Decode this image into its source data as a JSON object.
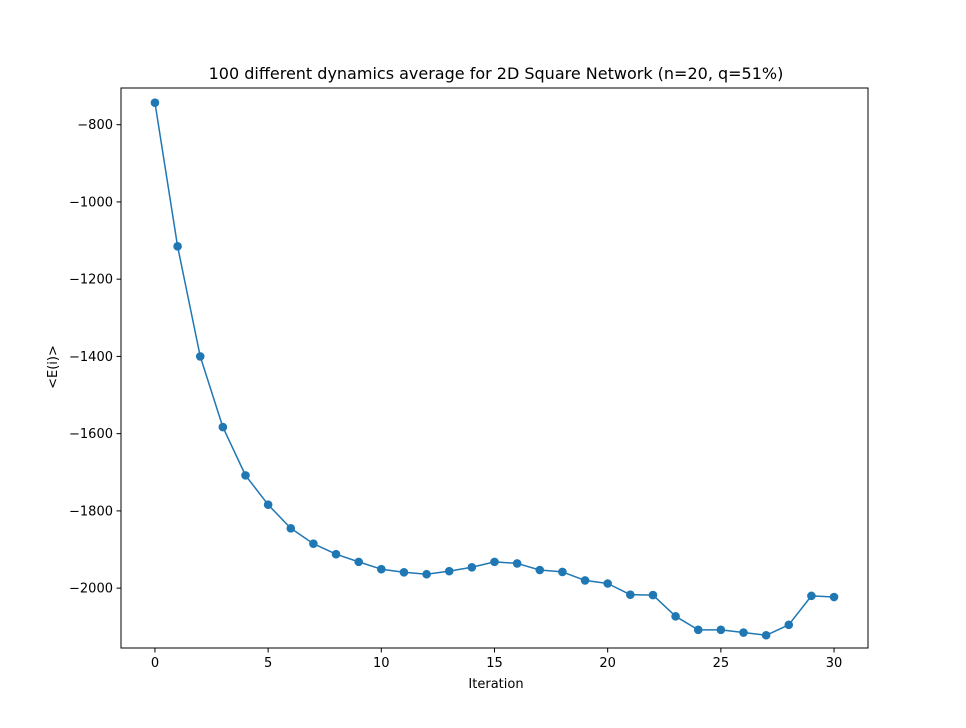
{
  "chart_data": {
    "type": "line",
    "title": "100 different dynamics average for 2D Square Network (n=20, q=51%)",
    "xlabel": "Iteration",
    "ylabel": "<E(i)>",
    "xlim": [
      -1.5,
      31.5
    ],
    "ylim": [
      -2155,
      -705
    ],
    "xticks": [
      0,
      5,
      10,
      15,
      20,
      25,
      30
    ],
    "yticks": [
      -800,
      -1000,
      -1200,
      -1400,
      -1600,
      -1800,
      -2000
    ],
    "xtick_labels": [
      "0",
      "5",
      "10",
      "15",
      "20",
      "25",
      "30"
    ],
    "ytick_labels": [
      "−800",
      "−1000",
      "−1200",
      "−1400",
      "−1600",
      "−1800",
      "−2000"
    ],
    "grid": false,
    "line_color": "#1f77b4",
    "marker": "circle",
    "series": [
      {
        "x": [
          0,
          1,
          2,
          3,
          4,
          5,
          6,
          7,
          8,
          9,
          10,
          11,
          12,
          13,
          14,
          15,
          16,
          17,
          18,
          19,
          20,
          21,
          22,
          23,
          24,
          25,
          26,
          27,
          28,
          29,
          30
        ],
        "y": [
          -743,
          -1115,
          -1400,
          -1583,
          -1708,
          -1784,
          -1845,
          -1885,
          -1912,
          -1932,
          -1951,
          -1959,
          -1964,
          -1956,
          -1946,
          -1932,
          -1936,
          -1953,
          -1958,
          -1980,
          -1988,
          -2017,
          -2018,
          -2073,
          -2108,
          -2108,
          -2115,
          -2122,
          -2095,
          -2020,
          -2023
        ]
      }
    ]
  }
}
